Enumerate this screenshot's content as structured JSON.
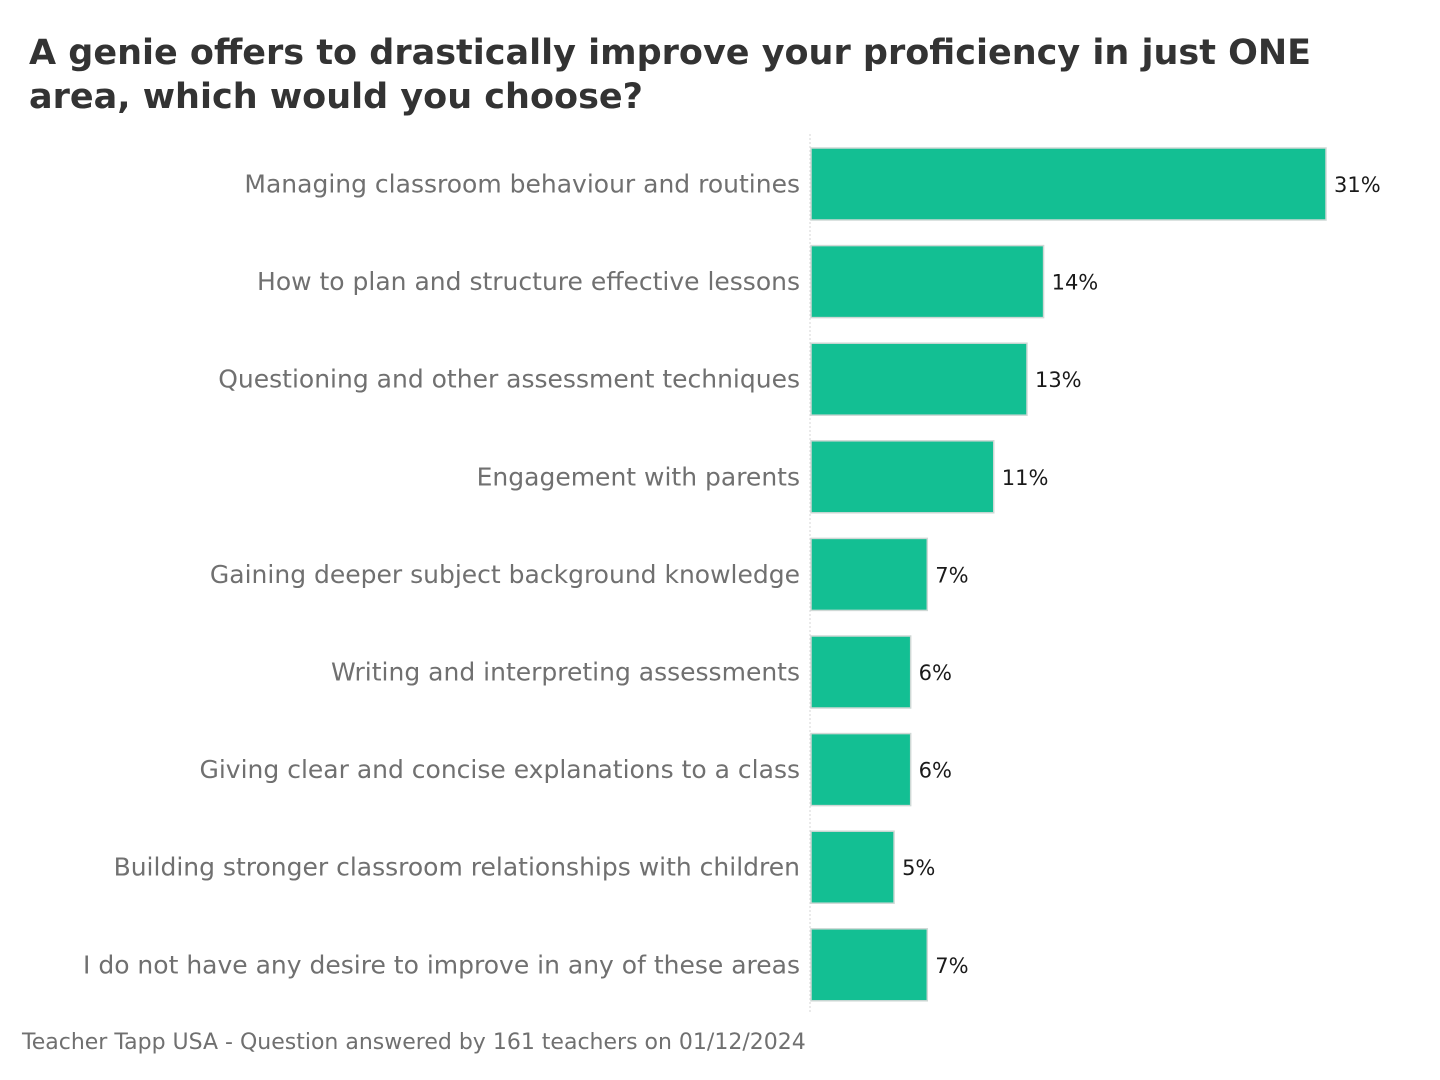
{
  "chart_data": {
    "type": "bar",
    "orientation": "horizontal",
    "title": "A genie offers to drastically improve your proficiency in just ONE area, which would you choose?",
    "categories": [
      "Managing classroom behaviour and routines",
      "How to plan and structure effective lessons",
      "Questioning and other assessment techniques",
      "Engagement with parents",
      "Gaining deeper subject background knowledge",
      "Writing and interpreting assessments",
      "Giving clear and concise explanations to a class",
      "Building stronger classroom relationships with children",
      "I do not have any desire to improve in any of these areas"
    ],
    "values": [
      31,
      14,
      13,
      11,
      7,
      6,
      6,
      5,
      7
    ],
    "value_labels": [
      "31%",
      "14%",
      "13%",
      "11%",
      "7%",
      "6%",
      "6%",
      "5%",
      "7%"
    ],
    "xlabel": "",
    "ylabel": "",
    "grid": false,
    "legend": "none",
    "colors": {
      "bar": "#13bf93",
      "bar_stroke": "#cfd8d5",
      "title": "#333333",
      "category_label": "#707070",
      "value_label": "#1a1a1a",
      "baseline": "#d6d6d6"
    }
  },
  "footer": "Teacher Tapp USA - Question answered by 161 teachers on 01/12/2024"
}
